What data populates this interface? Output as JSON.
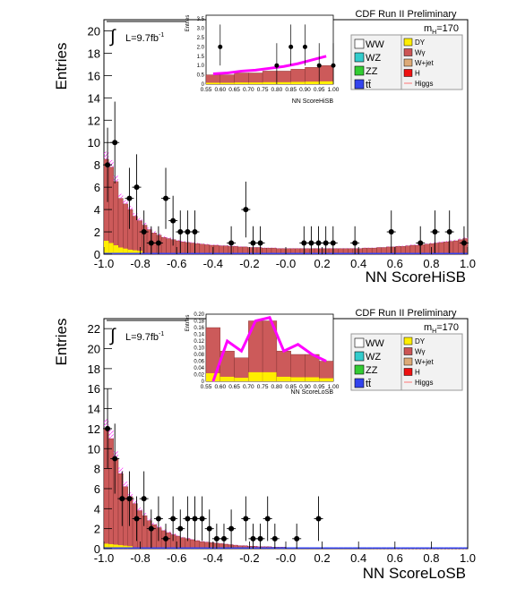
{
  "chart_data": [
    {
      "type": "bar",
      "title": "CDF Run II Preliminary",
      "xlabel": "NN ScoreHiSB",
      "ylabel": "Entries",
      "luminosity": "L=9.7fb",
      "luminosity_sup": "-1",
      "mass_label": "m",
      "mass_sub": "H",
      "mass_value": "=170",
      "xlim": [
        -1.0,
        1.0
      ],
      "ylim": [
        0,
        21
      ],
      "x_ticks": [
        "-1.0",
        "-0.8",
        "-0.6",
        "-0.4",
        "-0.2",
        "-0.0",
        "0.2",
        "0.4",
        "0.6",
        "0.8",
        "1.0"
      ],
      "y_ticks": [
        "0",
        "2",
        "4",
        "6",
        "8",
        "10",
        "12",
        "14",
        "16",
        "18",
        "20"
      ],
      "legend_left": [
        "WW",
        "WZ",
        "ZZ",
        "tt̄"
      ],
      "legend_right": [
        "DY",
        "Wγ",
        "W+jet",
        "H",
        "Higgs"
      ],
      "stack_total": [
        8.5,
        7.8,
        6.5,
        5.0,
        4.5,
        4.0,
        3.4,
        3.0,
        2.6,
        2.2,
        1.9,
        1.7,
        1.5,
        1.4,
        1.3,
        1.2,
        1.1,
        1.05,
        1.0,
        0.95,
        0.9,
        0.85,
        0.8,
        0.8,
        0.75,
        0.75,
        0.7,
        0.7,
        0.65,
        0.65,
        0.6,
        0.6,
        0.6,
        0.55,
        0.55,
        0.55,
        0.5,
        0.5,
        0.5,
        0.5,
        0.5,
        0.5,
        0.5,
        0.5,
        0.5,
        0.5,
        0.5,
        0.5,
        0.5,
        0.5,
        0.5,
        0.5,
        0.5,
        0.5,
        0.55,
        0.55,
        0.55,
        0.6,
        0.6,
        0.65,
        0.65,
        0.7,
        0.7,
        0.75,
        0.8,
        0.8,
        0.85,
        0.9,
        0.95,
        1.0,
        1.05,
        1.1,
        1.15,
        1.2,
        1.3,
        1.4
      ],
      "dy_band": [
        1.2,
        1.0,
        0.8,
        0.6,
        0.5,
        0.4,
        0.35,
        0.3
      ],
      "data_points": [
        [
          -0.98,
          8
        ],
        [
          -0.94,
          10
        ],
        [
          -0.86,
          5
        ],
        [
          -0.82,
          6
        ],
        [
          -0.78,
          2
        ],
        [
          -0.74,
          1
        ],
        [
          -0.7,
          1
        ],
        [
          -0.66,
          5
        ],
        [
          -0.62,
          3
        ],
        [
          -0.58,
          2
        ],
        [
          -0.54,
          2
        ],
        [
          -0.5,
          2
        ],
        [
          -0.3,
          1
        ],
        [
          -0.22,
          4
        ],
        [
          -0.18,
          1
        ],
        [
          -0.14,
          1
        ],
        [
          0.1,
          1
        ],
        [
          0.14,
          1
        ],
        [
          0.18,
          1
        ],
        [
          0.22,
          1
        ],
        [
          0.26,
          1
        ],
        [
          0.38,
          1
        ],
        [
          0.58,
          2
        ],
        [
          0.74,
          1
        ],
        [
          0.82,
          2
        ],
        [
          0.9,
          2
        ],
        [
          0.98,
          1
        ]
      ],
      "inset": {
        "xlabel": "NN ScoreHiSB",
        "ylabel": "Entries",
        "xlim": [
          0.55,
          1.0
        ],
        "ylim": [
          0,
          3.7
        ],
        "x_ticks": [
          "0.55",
          "0.60",
          "0.65",
          "0.70",
          "0.75",
          "0.80",
          "0.85",
          "0.90",
          "0.95",
          "1.00"
        ],
        "y_ticks": [
          "0",
          "0.5",
          "1.0",
          "1.5",
          "2.0",
          "2.5",
          "3.0",
          "3.5"
        ],
        "stack_total": [
          0.5,
          0.5,
          0.6,
          0.6,
          0.7,
          0.7,
          0.8,
          0.9,
          1.0
        ],
        "signal": [
          0.55,
          0.6,
          0.7,
          0.75,
          0.85,
          0.95,
          1.1,
          1.3,
          1.5
        ],
        "data_points": [
          [
            0.6,
            2
          ],
          [
            0.8,
            1
          ],
          [
            0.85,
            2
          ],
          [
            0.9,
            2
          ],
          [
            0.95,
            1
          ],
          [
            1.0,
            1
          ]
        ]
      }
    },
    {
      "type": "bar",
      "title": "CDF Run II Preliminary",
      "xlabel": "NN ScoreLoSB",
      "ylabel": "Entries",
      "luminosity": "L=9.7fb",
      "luminosity_sup": "-1",
      "mass_label": "m",
      "mass_sub": "H",
      "mass_value": "=170",
      "xlim": [
        -1.0,
        1.0
      ],
      "ylim": [
        0,
        23
      ],
      "x_ticks": [
        "-1.0",
        "-0.8",
        "-0.6",
        "-0.4",
        "-0.2",
        "-0.0",
        "0.2",
        "0.4",
        "0.6",
        "0.8",
        "1.0"
      ],
      "y_ticks": [
        "0",
        "2",
        "4",
        "6",
        "8",
        "10",
        "12",
        "14",
        "16",
        "18",
        "20",
        "22"
      ],
      "legend_left": [
        "WW",
        "WZ",
        "ZZ",
        "tt̄"
      ],
      "legend_right": [
        "DY",
        "Wγ",
        "W+jet",
        "H",
        "Higgs"
      ],
      "stack_total": [
        12.0,
        11.0,
        9.0,
        7.5,
        6.2,
        5.2,
        4.5,
        3.8,
        3.3,
        2.8,
        2.4,
        2.1,
        1.8,
        1.6,
        1.4,
        1.25,
        1.1,
        1.0,
        0.9,
        0.8,
        0.7,
        0.65,
        0.6,
        0.55,
        0.5,
        0.45,
        0.4,
        0.35,
        0.3,
        0.3,
        0.25,
        0.25,
        0.2,
        0.2,
        0.2,
        0.15,
        0.15,
        0.15,
        0.1,
        0.1,
        0.1,
        0.1,
        0.08,
        0.08,
        0.08,
        0.06,
        0.06,
        0.06,
        0.05,
        0.05,
        0.05,
        0.05,
        0.04,
        0.04,
        0.04,
        0.04,
        0.03,
        0.03,
        0.03,
        0.03,
        0.03,
        0.02,
        0.02,
        0.02,
        0.02,
        0.02,
        0.02,
        0.02,
        0.02,
        0.02,
        0.02,
        0.02,
        0.02,
        0.02,
        0.02,
        0.02
      ],
      "dy_band": [
        0.5,
        0.45,
        0.4,
        0.35,
        0.3,
        0.25
      ],
      "data_points": [
        [
          -0.98,
          12
        ],
        [
          -0.94,
          9
        ],
        [
          -0.9,
          5
        ],
        [
          -0.86,
          5
        ],
        [
          -0.82,
          3
        ],
        [
          -0.78,
          5
        ],
        [
          -0.74,
          2
        ],
        [
          -0.7,
          3
        ],
        [
          -0.66,
          1
        ],
        [
          -0.62,
          3
        ],
        [
          -0.58,
          2
        ],
        [
          -0.54,
          3
        ],
        [
          -0.5,
          3
        ],
        [
          -0.46,
          3
        ],
        [
          -0.42,
          2
        ],
        [
          -0.38,
          1
        ],
        [
          -0.34,
          1
        ],
        [
          -0.3,
          2
        ],
        [
          -0.22,
          3
        ],
        [
          -0.18,
          1
        ],
        [
          -0.14,
          1
        ],
        [
          -0.1,
          3
        ],
        [
          -0.06,
          1
        ],
        [
          0.06,
          1
        ],
        [
          0.18,
          3
        ]
      ],
      "inset": {
        "xlabel": "NN ScoreLoSB",
        "ylabel": "Entries",
        "xlim": [
          0.55,
          1.0
        ],
        "ylim": [
          0,
          0.2
        ],
        "x_ticks": [
          "0.55",
          "0.60",
          "0.65",
          "0.70",
          "0.75",
          "0.80",
          "0.85",
          "0.90",
          "0.95",
          "1.00"
        ],
        "y_ticks": [
          "0",
          "0.02",
          "0.04",
          "0.06",
          "0.08",
          "0.10",
          "0.12",
          "0.14",
          "0.16",
          "0.18",
          "0.20"
        ],
        "stack_total": [
          0.16,
          0.09,
          0.07,
          0.18,
          0.18,
          0.09,
          0.08,
          0.08,
          0.06
        ],
        "signal": [
          0.0,
          0.12,
          0.09,
          0.18,
          0.19,
          0.09,
          0.11,
          0.08,
          0.06
        ],
        "data_points": []
      }
    }
  ]
}
